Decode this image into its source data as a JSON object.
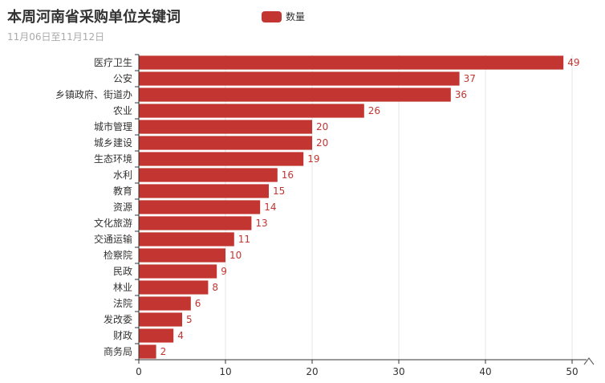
{
  "title": "本周河南省采购单位关键词",
  "subtitle": "11月06日至11月12日",
  "colors": {
    "bar": "#c23531",
    "axis": "#333333",
    "grid": "#e6e6e6",
    "tick_text": "#333333"
  },
  "legend_icon": "up-caret-icon",
  "chart_data": {
    "type": "bar",
    "orientation": "horizontal",
    "title": "本周河南省采购单位关键词",
    "subtitle": "11月06日至11月12日",
    "categories": [
      "医疗卫生",
      "公安",
      "乡镇政府、街道办",
      "农业",
      "城市管理",
      "城乡建设",
      "生态环境",
      "水利",
      "教育",
      "资源",
      "文化旅游",
      "交通运输",
      "检察院",
      "民政",
      "林业",
      "法院",
      "发改委",
      "财政",
      "商务局"
    ],
    "series": [
      {
        "name": "数量",
        "values": [
          49,
          37,
          36,
          26,
          20,
          20,
          19,
          16,
          15,
          14,
          13,
          11,
          10,
          9,
          8,
          6,
          5,
          4,
          2
        ]
      }
    ],
    "xlim": [
      0,
      50
    ],
    "xticks": [
      0,
      10,
      20,
      30,
      40,
      50
    ],
    "grid": true,
    "legend": "top-center",
    "data_labels": true
  }
}
